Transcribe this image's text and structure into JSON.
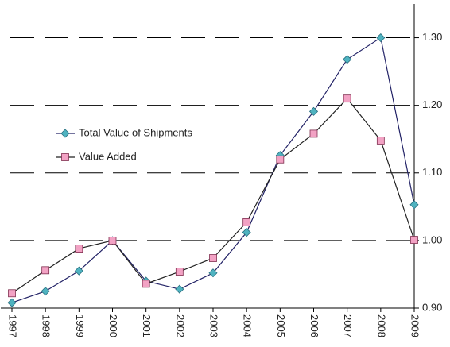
{
  "chart_data": {
    "type": "line",
    "categories": [
      "1997",
      "1998",
      "1999",
      "2000",
      "2001",
      "2002",
      "2003",
      "2004",
      "2005",
      "2006",
      "2007",
      "2008",
      "2009"
    ],
    "series": [
      {
        "name": "Total Value of Shipments",
        "color": "#4fb3c0",
        "line_color": "#222266",
        "marker": "diamond",
        "values": [
          0.908,
          0.925,
          0.955,
          1.0,
          0.94,
          0.928,
          0.952,
          1.012,
          1.126,
          1.191,
          1.268,
          1.3,
          1.053
        ]
      },
      {
        "name": "Value Added",
        "color": "#f2a2c4",
        "line_color": "#222222",
        "marker": "square",
        "values": [
          0.922,
          0.956,
          0.988,
          1.0,
          0.936,
          0.954,
          0.974,
          1.027,
          1.12,
          1.158,
          1.21,
          1.148,
          1.001
        ]
      }
    ],
    "ylim": [
      0.9,
      1.35
    ],
    "yticks": [
      {
        "value": 0.9,
        "label": "0.90"
      },
      {
        "value": 1.0,
        "label": "1.00"
      },
      {
        "value": 1.1,
        "label": "1.10"
      },
      {
        "value": 1.2,
        "label": "1.20"
      },
      {
        "value": 1.3,
        "label": "1.30"
      }
    ],
    "grid": true,
    "legend": "left"
  }
}
